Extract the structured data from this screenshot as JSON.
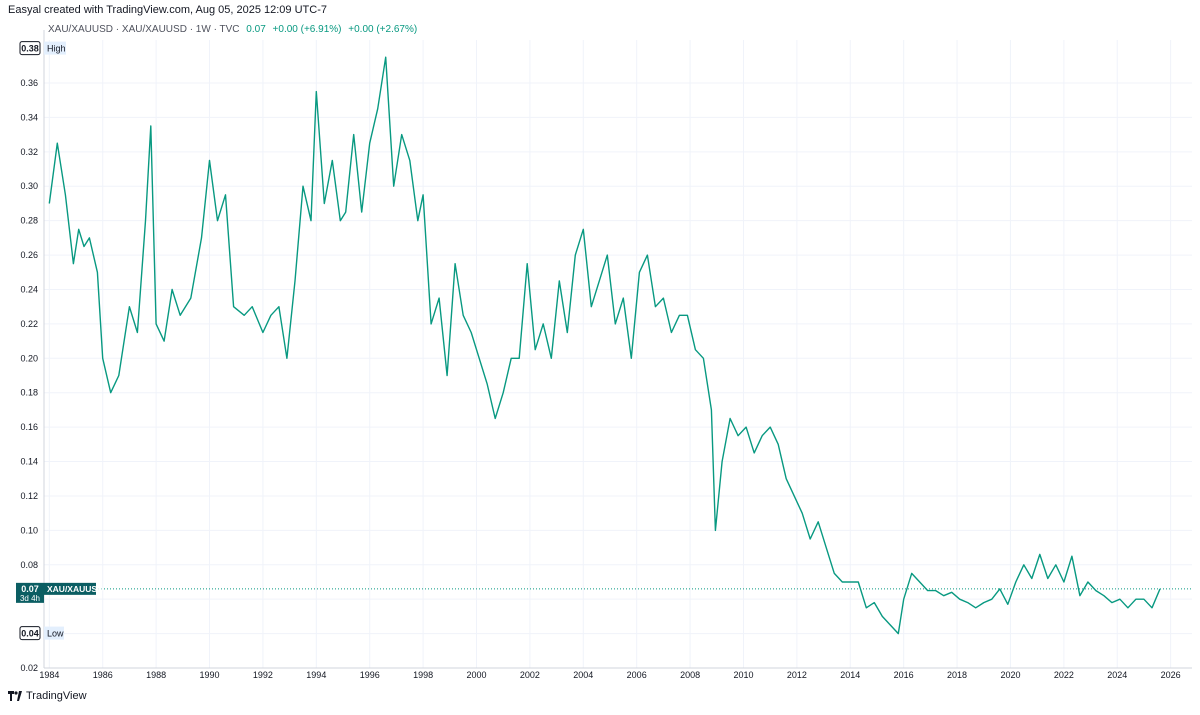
{
  "caption": "Easyal created with TradingView.com, Aug 05, 2025 12:09 UTC-7",
  "legend": {
    "symbol": "XAU/XAUUSD · XAU/XAUUSD · 1W · TVC",
    "last": "0.07",
    "change_abs": "+0.00 (+6.91%)",
    "change_pct": "+0.00 (+2.67%)"
  },
  "footer": {
    "brand": "TradingView"
  },
  "colors": {
    "line": "#089981",
    "label_bg": "#0b5e63",
    "grid": "#f0f3fa",
    "text": "#131722"
  },
  "chart_data": {
    "type": "line",
    "title": "XAU/XAUUSD",
    "xlabel": "",
    "ylabel": "",
    "xlim": [
      1983.8,
      2026.8
    ],
    "ylim": [
      0.02,
      0.385
    ],
    "xticks": [
      "1984",
      "1986",
      "1988",
      "1990",
      "1992",
      "1994",
      "1996",
      "1998",
      "2000",
      "2002",
      "2004",
      "2006",
      "2008",
      "2010",
      "2012",
      "2014",
      "2016",
      "2018",
      "2020",
      "2022",
      "2024",
      "2026"
    ],
    "yticks": [
      "0.02",
      "0.04",
      "0.06",
      "0.08",
      "0.10",
      "0.12",
      "0.14",
      "0.16",
      "0.18",
      "0.20",
      "0.22",
      "0.24",
      "0.26",
      "0.28",
      "0.30",
      "0.32",
      "0.34",
      "0.36"
    ],
    "markers": {
      "high": {
        "value": "0.38",
        "label": "High",
        "y": 0.38
      },
      "low": {
        "value": "0.04",
        "label": "Low",
        "y": 0.04
      },
      "last": {
        "value": "0.07",
        "label": "XAU/XAUUSD",
        "countdown": "3d 4h",
        "y": 0.066
      }
    },
    "series": [
      {
        "name": "XAU/XAUUSD",
        "x": [
          1984.0,
          1984.3,
          1984.6,
          1984.9,
          1985.1,
          1985.3,
          1985.5,
          1985.8,
          1986.0,
          1986.3,
          1986.6,
          1987.0,
          1987.3,
          1987.6,
          1987.8,
          1988.0,
          1988.3,
          1988.6,
          1988.9,
          1989.3,
          1989.7,
          1990.0,
          1990.3,
          1990.6,
          1990.9,
          1991.3,
          1991.6,
          1992.0,
          1992.3,
          1992.6,
          1992.9,
          1993.2,
          1993.5,
          1993.8,
          1994.0,
          1994.3,
          1994.6,
          1994.9,
          1995.1,
          1995.4,
          1995.7,
          1996.0,
          1996.3,
          1996.6,
          1996.9,
          1997.2,
          1997.5,
          1997.8,
          1998.0,
          1998.3,
          1998.6,
          1998.9,
          1999.2,
          1999.5,
          1999.8,
          2000.1,
          2000.4,
          2000.7,
          2001.0,
          2001.3,
          2001.6,
          2001.9,
          2002.2,
          2002.5,
          2002.8,
          2003.1,
          2003.4,
          2003.7,
          2004.0,
          2004.3,
          2004.6,
          2004.9,
          2005.2,
          2005.5,
          2005.8,
          2006.1,
          2006.4,
          2006.7,
          2007.0,
          2007.3,
          2007.6,
          2007.9,
          2008.2,
          2008.5,
          2008.8,
          2008.95,
          2009.2,
          2009.5,
          2009.8,
          2010.1,
          2010.4,
          2010.7,
          2011.0,
          2011.3,
          2011.6,
          2011.9,
          2012.2,
          2012.5,
          2012.8,
          2013.1,
          2013.4,
          2013.7,
          2014.0,
          2014.3,
          2014.6,
          2014.9,
          2015.2,
          2015.5,
          2015.8,
          2016.0,
          2016.3,
          2016.6,
          2016.9,
          2017.2,
          2017.5,
          2017.8,
          2018.1,
          2018.4,
          2018.7,
          2019.0,
          2019.3,
          2019.6,
          2019.9,
          2020.2,
          2020.5,
          2020.8,
          2021.1,
          2021.4,
          2021.7,
          2022.0,
          2022.3,
          2022.6,
          2022.9,
          2023.2,
          2023.5,
          2023.8,
          2024.1,
          2024.4,
          2024.7,
          2025.0,
          2025.3,
          2025.6
        ],
        "values": [
          0.29,
          0.325,
          0.295,
          0.255,
          0.275,
          0.265,
          0.27,
          0.25,
          0.2,
          0.18,
          0.19,
          0.23,
          0.215,
          0.28,
          0.335,
          0.22,
          0.21,
          0.24,
          0.225,
          0.235,
          0.27,
          0.315,
          0.28,
          0.295,
          0.23,
          0.225,
          0.23,
          0.215,
          0.225,
          0.23,
          0.2,
          0.245,
          0.3,
          0.28,
          0.355,
          0.29,
          0.315,
          0.28,
          0.285,
          0.33,
          0.285,
          0.325,
          0.345,
          0.375,
          0.3,
          0.33,
          0.315,
          0.28,
          0.295,
          0.22,
          0.235,
          0.19,
          0.255,
          0.225,
          0.215,
          0.2,
          0.185,
          0.165,
          0.18,
          0.2,
          0.2,
          0.255,
          0.205,
          0.22,
          0.2,
          0.245,
          0.215,
          0.26,
          0.275,
          0.23,
          0.245,
          0.26,
          0.22,
          0.235,
          0.2,
          0.25,
          0.26,
          0.23,
          0.235,
          0.215,
          0.225,
          0.225,
          0.205,
          0.2,
          0.17,
          0.1,
          0.14,
          0.165,
          0.155,
          0.16,
          0.145,
          0.155,
          0.16,
          0.15,
          0.13,
          0.12,
          0.11,
          0.095,
          0.105,
          0.09,
          0.075,
          0.07,
          0.07,
          0.07,
          0.055,
          0.058,
          0.05,
          0.045,
          0.04,
          0.06,
          0.075,
          0.07,
          0.065,
          0.065,
          0.062,
          0.064,
          0.06,
          0.058,
          0.055,
          0.058,
          0.06,
          0.066,
          0.057,
          0.07,
          0.08,
          0.072,
          0.086,
          0.072,
          0.08,
          0.07,
          0.085,
          0.062,
          0.07,
          0.065,
          0.062,
          0.058,
          0.06,
          0.055,
          0.06,
          0.06,
          0.055,
          0.066
        ]
      }
    ]
  }
}
